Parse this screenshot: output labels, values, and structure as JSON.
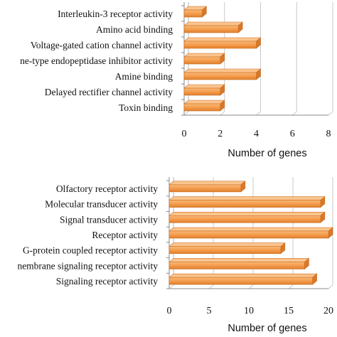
{
  "chart_data": [
    {
      "type": "bar",
      "orientation": "horizontal",
      "style": "3d",
      "categories": [
        "Interleukin-3 receptor activity",
        "Amino acid binding",
        "Voltage-gated cation channel activity",
        "ne-type endopeptidase inhibitor activity",
        "Amine binding",
        "Delayed rectifier channel activity",
        "Toxin binding"
      ],
      "values": [
        1,
        3,
        4,
        2,
        4,
        2,
        2
      ],
      "xlabel": "Number of genes",
      "xlim": [
        0,
        8
      ],
      "ticks": [
        0,
        2,
        4,
        6,
        8
      ],
      "grid": "vertical",
      "bar_color": "#f39a4a"
    },
    {
      "type": "bar",
      "orientation": "horizontal",
      "style": "3d",
      "categories": [
        "Olfactory receptor activity",
        "Molecular transducer activity",
        "Signal transducer activity",
        "Receptor activity",
        "G-protein coupled receptor activity",
        "nembrane signaling receptor activity",
        "Signaling receptor activity"
      ],
      "values": [
        9,
        19,
        19,
        20,
        14,
        17,
        18
      ],
      "xlabel": "Number of genes",
      "xlim": [
        0,
        20
      ],
      "ticks": [
        0,
        5,
        10,
        15,
        20
      ],
      "grid": "vertical",
      "bar_color": "#f39a4a"
    }
  ]
}
